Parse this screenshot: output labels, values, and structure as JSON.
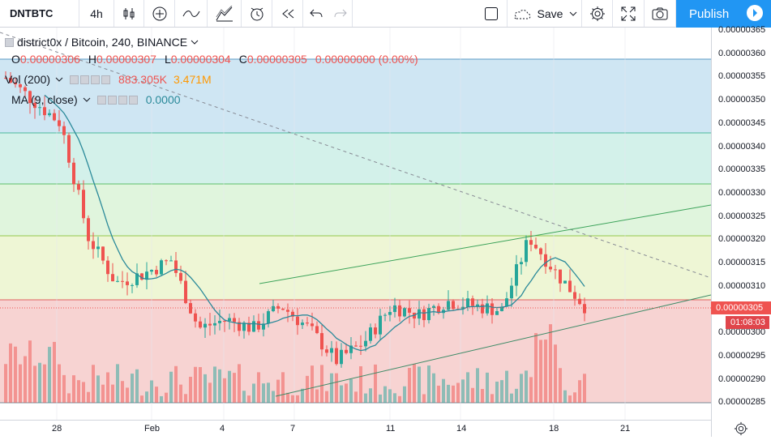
{
  "toolbar": {
    "symbol": "DNTBTC",
    "interval": "4h",
    "save_label": "Save",
    "publish_label": "Publish"
  },
  "legend": {
    "title": "district0x / Bitcoin, 240, BINANCE",
    "o_label": "O",
    "o_value": "0.00000306",
    "h_label": "H",
    "h_value": "0.00000307",
    "l_label": "L",
    "l_value": "0.00000304",
    "c_label": "C",
    "c_value": "0.00000305",
    "change": "0.00000000 (0.00%)",
    "vol_label": "Vol (200)",
    "vol_value_1": "883.305K",
    "vol_value_2": "3.471M",
    "ma_label": "MA (9, close)",
    "ma_value": "0.0000"
  },
  "price_axis": {
    "labels": [
      "0.00000365",
      "0.00000360",
      "0.00000355",
      "0.00000350",
      "0.00000345",
      "0.00000340",
      "0.00000335",
      "0.00000330",
      "0.00000325",
      "0.00000320",
      "0.00000315",
      "0.00000310",
      "0.00000305",
      "0.00000300",
      "0.00000295",
      "0.00000290",
      "0.00000285"
    ],
    "current_price": "0.00000305",
    "countdown": "01:08:03"
  },
  "time_axis": {
    "labels": [
      "28",
      "Feb",
      "4",
      "7",
      "11",
      "14",
      "18",
      "21"
    ]
  },
  "colors": {
    "bull": "#26a69a",
    "bear": "#ef5350",
    "ma": "#2b8a9a",
    "accent": "#2196f3",
    "price_tag": "#ef5350",
    "countdown_tag": "#e0454b"
  },
  "chart_data": {
    "type": "candlestick",
    "title": "district0x / Bitcoin, 240, BINANCE",
    "ylim": [
      2.8e-06,
      3.66e-06
    ],
    "x_ticks": [
      "28",
      "Feb",
      "4",
      "7",
      "11",
      "14",
      "18",
      "21"
    ],
    "series_close_approx": [
      3.55e-06,
      3.5e-06,
      3.45e-06,
      3.2e-06,
      3.1e-06,
      3.12e-06,
      3.15e-06,
      3e-06,
      3.02e-06,
      3e-06,
      3.05e-06,
      3e-06,
      2.93e-06,
      2.97e-06,
      3.05e-06,
      3.03e-06,
      3.06e-06,
      3.05e-06,
      3.04e-06,
      3.2e-06,
      3.12e-06,
      3.05e-06
    ],
    "fib_levels": [
      3.59e-06,
      3.43e-06,
      3.32e-06,
      3.21e-06,
      3.07e-06,
      2.85e-06
    ],
    "last_close": 3.05e-06
  }
}
